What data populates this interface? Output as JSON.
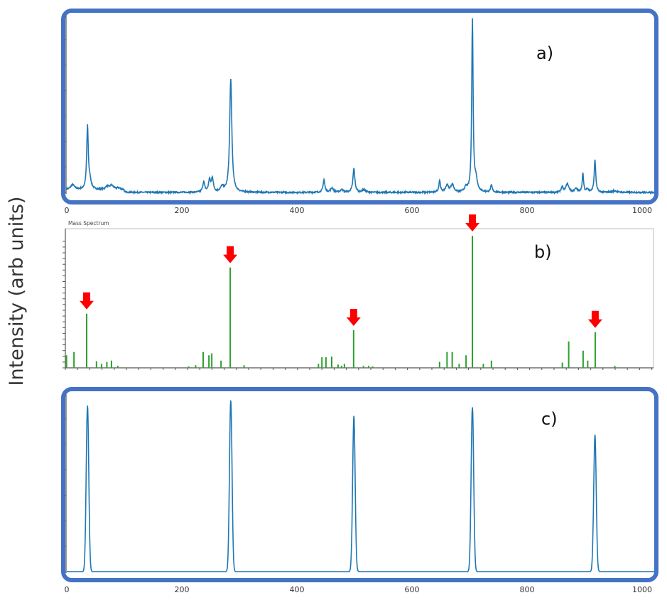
{
  "chart_data": [
    {
      "type": "line",
      "panel_label": "a)",
      "title": "",
      "xlabel": "",
      "ylabel": "Intensity (arb units)",
      "xlim": [
        0,
        1000
      ],
      "ylim": [
        0,
        1
      ],
      "x_ticks": [
        "0",
        "200",
        "400",
        "600",
        "800",
        "1000"
      ],
      "baseline": 0.0,
      "peaks": [
        {
          "x": 10,
          "h": 0.03,
          "w": 4
        },
        {
          "x": 36,
          "h": 0.36,
          "w": 1.6
        },
        {
          "x": 40,
          "h": 0.05,
          "w": 3
        },
        {
          "x": 70,
          "h": 0.02,
          "w": 3
        },
        {
          "x": 78,
          "h": 0.025,
          "w": 4
        },
        {
          "x": 90,
          "h": 0.01,
          "w": 4
        },
        {
          "x": 238,
          "h": 0.06,
          "w": 2
        },
        {
          "x": 248,
          "h": 0.07,
          "w": 2
        },
        {
          "x": 253,
          "h": 0.08,
          "w": 2
        },
        {
          "x": 270,
          "h": 0.03,
          "w": 3
        },
        {
          "x": 285,
          "h": 0.66,
          "w": 2.2
        },
        {
          "x": 447,
          "h": 0.075,
          "w": 1.8
        },
        {
          "x": 461,
          "h": 0.025,
          "w": 3
        },
        {
          "x": 478,
          "h": 0.015,
          "w": 3
        },
        {
          "x": 499,
          "h": 0.14,
          "w": 2
        },
        {
          "x": 516,
          "h": 0.015,
          "w": 3
        },
        {
          "x": 648,
          "h": 0.07,
          "w": 1.6
        },
        {
          "x": 661,
          "h": 0.04,
          "w": 3
        },
        {
          "x": 670,
          "h": 0.045,
          "w": 3
        },
        {
          "x": 694,
          "h": 0.025,
          "w": 3
        },
        {
          "x": 705,
          "h": 1.0,
          "w": 1.4
        },
        {
          "x": 711,
          "h": 0.07,
          "w": 3
        },
        {
          "x": 738,
          "h": 0.04,
          "w": 1.8
        },
        {
          "x": 861,
          "h": 0.03,
          "w": 2
        },
        {
          "x": 870,
          "h": 0.05,
          "w": 3
        },
        {
          "x": 885,
          "h": 0.02,
          "w": 3
        },
        {
          "x": 897,
          "h": 0.11,
          "w": 1.4
        },
        {
          "x": 905,
          "h": 0.02,
          "w": 2
        },
        {
          "x": 918,
          "h": 0.19,
          "w": 1.6
        },
        {
          "x": 952,
          "h": 0.01,
          "w": 4
        }
      ],
      "color": "#1f77b4"
    },
    {
      "type": "bar",
      "panel_label": "b)",
      "title": "Mass Spectrum",
      "xlim": [
        0,
        1000
      ],
      "ylim": [
        0,
        1
      ],
      "sticks": [
        {
          "x": 1,
          "y": 0.095
        },
        {
          "x": 14,
          "y": 0.12
        },
        {
          "x": 36,
          "y": 0.41
        },
        {
          "x": 53,
          "y": 0.05
        },
        {
          "x": 62,
          "y": 0.03
        },
        {
          "x": 71,
          "y": 0.045
        },
        {
          "x": 79,
          "y": 0.055
        },
        {
          "x": 90,
          "y": 0.015
        },
        {
          "x": 213,
          "y": 0.01
        },
        {
          "x": 225,
          "y": 0.02
        },
        {
          "x": 238,
          "y": 0.12
        },
        {
          "x": 248,
          "y": 0.095
        },
        {
          "x": 253,
          "y": 0.11
        },
        {
          "x": 269,
          "y": 0.055
        },
        {
          "x": 285,
          "y": 0.76
        },
        {
          "x": 309,
          "y": 0.02
        },
        {
          "x": 438,
          "y": 0.03
        },
        {
          "x": 444,
          "y": 0.08
        },
        {
          "x": 451,
          "y": 0.08
        },
        {
          "x": 461,
          "y": 0.085
        },
        {
          "x": 472,
          "y": 0.025
        },
        {
          "x": 478,
          "y": 0.015
        },
        {
          "x": 483,
          "y": 0.03
        },
        {
          "x": 499,
          "y": 0.285
        },
        {
          "x": 516,
          "y": 0.015
        },
        {
          "x": 525,
          "y": 0.015
        },
        {
          "x": 532,
          "y": 0.01
        },
        {
          "x": 648,
          "y": 0.045
        },
        {
          "x": 661,
          "y": 0.12
        },
        {
          "x": 670,
          "y": 0.12
        },
        {
          "x": 682,
          "y": 0.03
        },
        {
          "x": 694,
          "y": 0.095
        },
        {
          "x": 705,
          "y": 1.0
        },
        {
          "x": 724,
          "y": 0.03
        },
        {
          "x": 738,
          "y": 0.055
        },
        {
          "x": 861,
          "y": 0.04
        },
        {
          "x": 872,
          "y": 0.2
        },
        {
          "x": 897,
          "y": 0.13
        },
        {
          "x": 905,
          "y": 0.055
        },
        {
          "x": 918,
          "y": 0.27
        },
        {
          "x": 952,
          "y": 0.015
        }
      ],
      "highlighted": [
        36,
        285,
        499,
        705,
        918
      ],
      "color": "#2ca02c",
      "arrow_color": "#ff0000"
    },
    {
      "type": "line",
      "panel_label": "c)",
      "xlim": [
        0,
        1000
      ],
      "ylim": [
        0,
        1
      ],
      "x_ticks": [
        "0",
        "200",
        "400",
        "600",
        "800",
        "1000"
      ],
      "peaks": [
        {
          "x": 36,
          "h": 0.97,
          "w": 2.2
        },
        {
          "x": 285,
          "h": 1.0,
          "w": 2.2
        },
        {
          "x": 499,
          "h": 0.91,
          "w": 2.2
        },
        {
          "x": 705,
          "h": 0.96,
          "w": 2.2
        },
        {
          "x": 918,
          "h": 0.8,
          "w": 2.2
        }
      ],
      "color": "#1f77b4"
    }
  ],
  "frame_color": "#4472c4"
}
